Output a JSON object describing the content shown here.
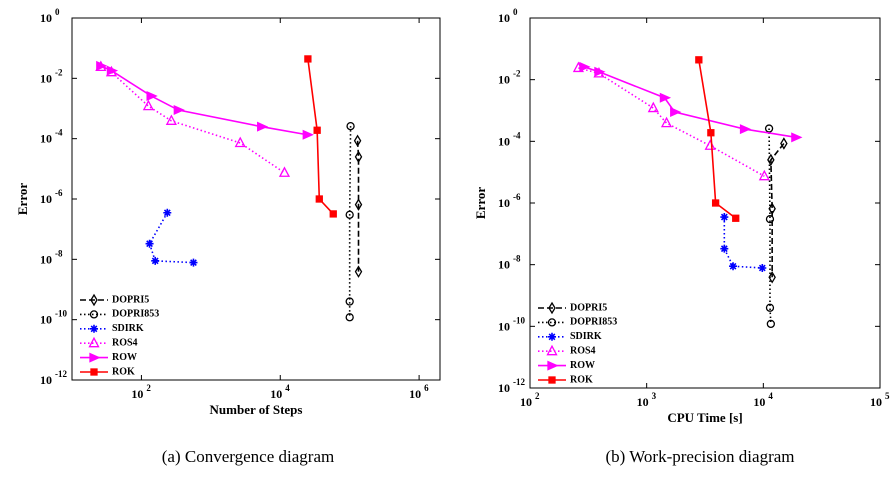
{
  "chart_data": [
    {
      "type": "line",
      "xscale": "log",
      "yscale": "log",
      "xlabel": "Number of Steps",
      "ylabel": "Error",
      "caption": "(a) Convergence diagram",
      "xlim": [
        10,
        2000000
      ],
      "ylim": [
        1e-12,
        1
      ],
      "xticks": [
        {
          "value": 100,
          "label": "10",
          "exp": "2"
        },
        {
          "value": 10000,
          "label": "10",
          "exp": "4"
        },
        {
          "value": 1000000,
          "label": "10",
          "exp": "6"
        }
      ],
      "yticks": [
        {
          "value": 1,
          "label": "10",
          "exp": "0"
        },
        {
          "value": 0.01,
          "label": "10",
          "exp": "-2"
        },
        {
          "value": 0.0001,
          "label": "10",
          "exp": "-4"
        },
        {
          "value": 1e-06,
          "label": "10",
          "exp": "-6"
        },
        {
          "value": 1e-08,
          "label": "10",
          "exp": "-8"
        },
        {
          "value": 1e-10,
          "label": "10",
          "exp": "-10"
        },
        {
          "value": 1e-12,
          "label": "10",
          "exp": "-12"
        }
      ],
      "legend": "lower left",
      "series": [
        {
          "name": "DOPRI5",
          "color": "#000000",
          "linestyle": "dashed",
          "marker": "diamond",
          "x": [
            130000,
            134000,
            134000,
            134000
          ],
          "values": [
            8.5e-05,
            2.5e-05,
            6.5e-07,
            3.9e-09
          ]
        },
        {
          "name": "DOPRI853",
          "color": "#000000",
          "linestyle": "dotted",
          "marker": "circle",
          "x": [
            103000,
            100000,
            100000,
            100000
          ],
          "values": [
            0.00026,
            3e-07,
            4e-10,
            1.2e-10
          ]
        },
        {
          "name": "SDIRK",
          "color": "#0000ff",
          "linestyle": "dotted",
          "marker": "star",
          "x": [
            236,
            131,
            158,
            562
          ],
          "values": [
            3.5e-07,
            3.3e-08,
            8.9e-09,
            7.8e-09
          ]
        },
        {
          "name": "ROS4",
          "color": "#ff00ff",
          "linestyle": "dotted",
          "marker": "triangle",
          "x": [
            26,
            37,
            126,
            270,
            2650,
            11500
          ],
          "values": [
            0.024,
            0.016,
            0.0012,
            0.00039,
            7.2e-05,
            7.4e-06
          ]
        },
        {
          "name": "ROW",
          "color": "#ff00ff",
          "linestyle": "solid",
          "marker": "arrow",
          "x": [
            26,
            37,
            138,
            340,
            5400,
            24500
          ],
          "values": [
            0.026,
            0.018,
            0.0026,
            0.00089,
            0.00025,
            0.000135
          ]
        },
        {
          "name": "ROK",
          "color": "#ff0000",
          "linestyle": "solid",
          "marker": "square",
          "x": [
            25000,
            34000,
            36500,
            58000
          ],
          "values": [
            0.044,
            0.00019,
            1e-06,
            3.2e-07
          ]
        }
      ]
    },
    {
      "type": "line",
      "xscale": "log",
      "yscale": "log",
      "xlabel": "CPU Time [s]",
      "ylabel": "Error",
      "caption": "(b) Work-precision diagram",
      "xlim": [
        100,
        100000
      ],
      "ylim": [
        1e-12,
        1
      ],
      "xticks": [
        {
          "value": 100,
          "label": "10",
          "exp": "2"
        },
        {
          "value": 1000,
          "label": "10",
          "exp": "3"
        },
        {
          "value": 10000,
          "label": "10",
          "exp": "4"
        },
        {
          "value": 100000,
          "label": "10",
          "exp": "5"
        }
      ],
      "yticks": [
        {
          "value": 1,
          "label": "10",
          "exp": "0"
        },
        {
          "value": 0.01,
          "label": "10",
          "exp": "-2"
        },
        {
          "value": 0.0001,
          "label": "10",
          "exp": "-4"
        },
        {
          "value": 1e-06,
          "label": "10",
          "exp": "-6"
        },
        {
          "value": 1e-08,
          "label": "10",
          "exp": "-8"
        },
        {
          "value": 1e-10,
          "label": "10",
          "exp": "-10"
        },
        {
          "value": 1e-12,
          "label": "10",
          "exp": "-12"
        }
      ],
      "legend": "lower left",
      "series": [
        {
          "name": "DOPRI5",
          "color": "#000000",
          "linestyle": "dashed",
          "marker": "diamond",
          "x": [
            15000,
            11600,
            11900,
            11900
          ],
          "values": [
            8.5e-05,
            2.5e-05,
            6.5e-07,
            3.9e-09
          ]
        },
        {
          "name": "DOPRI853",
          "color": "#000000",
          "linestyle": "dotted",
          "marker": "circle",
          "x": [
            11200,
            11400,
            11400,
            11600
          ],
          "values": [
            0.00026,
            3e-07,
            4e-10,
            1.2e-10
          ]
        },
        {
          "name": "SDIRK",
          "color": "#0000ff",
          "linestyle": "dotted",
          "marker": "star",
          "x": [
            4630,
            4630,
            5500,
            9800
          ],
          "values": [
            3.5e-07,
            3.3e-08,
            8.9e-09,
            7.8e-09
          ]
        },
        {
          "name": "ROS4",
          "color": "#ff00ff",
          "linestyle": "dotted",
          "marker": "triangle",
          "x": [
            260,
            390,
            1140,
            1480,
            3500,
            10200
          ],
          "values": [
            0.024,
            0.016,
            0.0012,
            0.00039,
            7.2e-05,
            7.4e-06
          ]
        },
        {
          "name": "ROW",
          "color": "#ff00ff",
          "linestyle": "solid",
          "marker": "arrow",
          "x": [
            290,
            390,
            1420,
            1740,
            6900,
            19000
          ],
          "values": [
            0.026,
            0.018,
            0.0026,
            0.00089,
            0.00025,
            0.000135
          ]
        },
        {
          "name": "ROK",
          "color": "#ff0000",
          "linestyle": "solid",
          "marker": "square",
          "x": [
            2800,
            3550,
            3900,
            5800
          ],
          "values": [
            0.044,
            0.00019,
            1e-06,
            3.2e-07
          ]
        }
      ]
    }
  ]
}
